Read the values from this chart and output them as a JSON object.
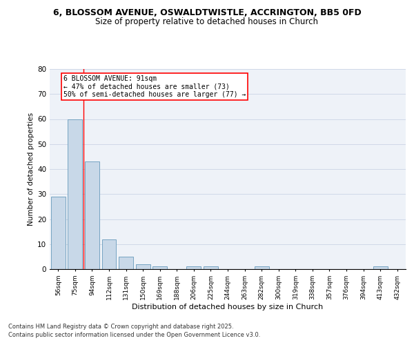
{
  "title1": "6, BLOSSOM AVENUE, OSWALDTWISTLE, ACCRINGTON, BB5 0FD",
  "title2": "Size of property relative to detached houses in Church",
  "xlabel": "Distribution of detached houses by size in Church",
  "ylabel": "Number of detached properties",
  "categories": [
    "56sqm",
    "75sqm",
    "94sqm",
    "112sqm",
    "131sqm",
    "150sqm",
    "169sqm",
    "188sqm",
    "206sqm",
    "225sqm",
    "244sqm",
    "263sqm",
    "282sqm",
    "300sqm",
    "319sqm",
    "338sqm",
    "357sqm",
    "376sqm",
    "394sqm",
    "413sqm",
    "432sqm"
  ],
  "values": [
    29,
    60,
    43,
    12,
    5,
    2,
    1,
    0,
    1,
    1,
    0,
    0,
    1,
    0,
    0,
    0,
    0,
    0,
    0,
    1,
    0
  ],
  "bar_color": "#c8d8e8",
  "bar_edge_color": "#6699bb",
  "red_line_index": 2,
  "annotation_text": "6 BLOSSOM AVENUE: 91sqm\n← 47% of detached houses are smaller (73)\n50% of semi-detached houses are larger (77) →",
  "annotation_box_color": "white",
  "annotation_box_edge_color": "red",
  "ylim": [
    0,
    80
  ],
  "yticks": [
    0,
    10,
    20,
    30,
    40,
    50,
    60,
    70,
    80
  ],
  "grid_color": "#d0d8e8",
  "background_color": "#eef2f8",
  "footer1": "Contains HM Land Registry data © Crown copyright and database right 2025.",
  "footer2": "Contains public sector information licensed under the Open Government Licence v3.0."
}
